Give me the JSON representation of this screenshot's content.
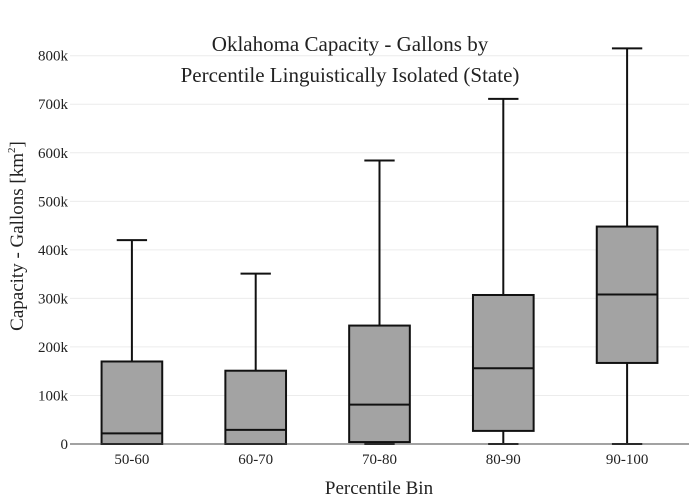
{
  "chart_data": {
    "type": "box",
    "title": [
      "Oklahoma Capacity - Gallons by",
      "Percentile Linguistically Isolated (State)"
    ],
    "xlabel": "Percentile Bin",
    "ylabel": {
      "text": "Capacity - Gallons  [km",
      "sup": "2",
      "close": "]"
    },
    "ylim": [
      0,
      820000
    ],
    "yticks": [
      0,
      100000,
      200000,
      300000,
      400000,
      500000,
      600000,
      700000,
      800000
    ],
    "ytick_labels": [
      "0",
      "100k",
      "200k",
      "300k",
      "400k",
      "500k",
      "600k",
      "700k",
      "800k"
    ],
    "grid": true,
    "box_color": "#a3a3a3",
    "line_color": "#111111",
    "categories": [
      "50-60",
      "60-70",
      "70-80",
      "80-90",
      "90-100"
    ],
    "boxes": [
      {
        "min": 0,
        "q1": 0,
        "median": 22000,
        "q3": 170000,
        "max": 420000
      },
      {
        "min": 0,
        "q1": 0,
        "median": 29000,
        "q3": 151000,
        "max": 351000
      },
      {
        "min": 0,
        "q1": 4000,
        "median": 81000,
        "q3": 244000,
        "max": 584000
      },
      {
        "min": 0,
        "q1": 27000,
        "median": 156000,
        "q3": 307000,
        "max": 711000
      },
      {
        "min": 0,
        "q1": 167000,
        "median": 308000,
        "q3": 448000,
        "max": 815000
      }
    ]
  }
}
